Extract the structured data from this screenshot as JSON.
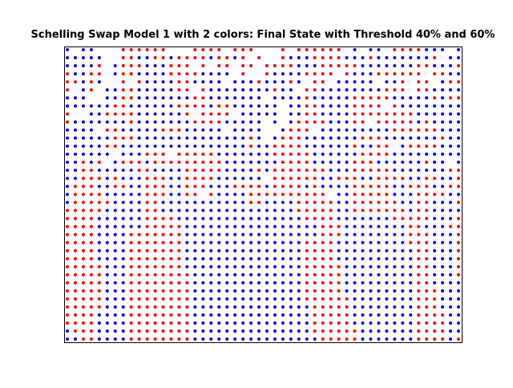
{
  "chart_data": {
    "type": "scatter",
    "title": "Schelling Swap Model 1 with 2 colors: Final State with Threshold 40% and 60%",
    "xlabel": "",
    "ylabel": "",
    "grid": false,
    "axes_ticks": false,
    "grid_size": [
      50,
      37
    ],
    "series": [
      {
        "color": "#ff0000"
      },
      {
        "color": "#0000ff"
      }
    ],
    "cells": [
      "b-bb---rrrrrr---rrrr-rrr---r-rrrrrr-b-bb-rrrrbbb-b",
      "bbbbb--rrbbrrbrrrrbrrbr-r--rbbbrrrrbbbrbbbbbbbr-bb",
      "bbbbr-brrrbbbrrr-r-rr-rr-rrrrbbbrrrrrbbbbbbbrrbbbr",
      "rbbrr-brrbbbbrrrrbbbb-r--rbbbbrrrr-rbbbrrrrrr-rrbb",
      "rrbrb--r-rbbbbrrbbbb-bbbrbbbrb-rr-bbbbb-bbr-rr-brr",
      "r-br-bbrrbbbbbrr-rbbbbbbbbrbb-rrbbbbbbbbrrr-rrbbbb",
      "bbb--bbrrbbbbbbbrrbbbbbbb-bbbbrbbbbbrrrrrbbbbbrbrr",
      "bbbbbbrrbbbbbbrrrrbrrbbbbbb-bbrrbbbbrrrr-rbbbbbbbb",
      "r--bbrrrrbbbbbbr-rrrr-bbbbb-bbrrbbbbrrrrrrrrbbbbbb",
      "rbbbbbbbrbbbbbbbrrrrbbbbb-b-brrrrbbbrr-rrrrrbrbbbb",
      "bbbb-rrbbbbbrrrbbbbb-bbbb--brrr-bbbbbbbbbrrrrrrbbb",
      "bbbbbbrrrbbbbbbbbbbbbbbrb-brrrbbbbbbbrrrbbbbbbbrbb",
      "bbbbbrrbbbbbbbbbbbbbbbbrbbrrrrbbbbbbrbbrr-brrrrbbb",
      "bbbbbb-bbbrrr-rrrrrbbbbbbbrrrrrbbbbbbrrrrbbbbbbbbb",
      "bbrbr-brrrbrrrrrrrrrbbbbbbbrrrrbbbbbrrrbbbbbbrbb-b",
      "bbrrbbbbbrrbbbbrrrrrbbbbrbrrrrrrrbbbrrrrrbbbbbbbrr",
      "bbrrrbrbbbrrrbbrrrrbbbbbb-rrrrrrbbrrrbbrrrrbbrrbbr",
      "brrrbbrrbbrrrbbrrrbbbrrrrbrrrrbrbbbbrrrrrbbrrrbbrr",
      "brrrrbbbbbrrrbbrr-rbbbbrrrrrrrrrr-bbrrrrrbbbrrrrbb",
      "brrrrrbbbbrrbbbbbbbbbbbrrbbbbrrrrrbbrrrrrrbbrrbbbr",
      "rrrrrbbbbbrrbbbbbbbbbbbbbbbbbrrrrrbbrrrrrrrbrrbbbb",
      "rrrrbbbbbbrrrrbbbbbbbbbbbbbbbbrrrrbbbbbbbrrrrrbbbr",
      "rrrrbbbbbbrrrrrbbbbbbbbbbbbbbbbbrrrbbbbbbbbrrbbbrr",
      "rrrrbbbbrrrrrrrbbbbbbbbbbbbbbbbbrrrbbbbbbbbrrrbbbr",
      "rrrrbbbbrrrrrrrbbbbbbbbbbbbbbbrrrrbbbbbbbbbrrrbbbr",
      "rrrrbbbbrrrrrrrbbbbbbbbbbbbbbbrrrrbbbbbbbbbbrrbbbr",
      "rrrrbbbbrrrrrrrbbbbbbbbbbbbbbbrrrrbbbbbbbbbbrrbbbr",
      "rrrrrbbbrrrrrrrbbbbbbbbbbbbbbbrrrrrbbbbbbbbbrrbbbr",
      "rrrrrbbbrrrrrrrrbbbbbbbbbbbbbbrrrrrbbbbbbbbbrrbbbr",
      "rrrrrbbbrrrrrrrrbbbbbbbbbbbbbbrrrrrbbbbbbbbbrrbbbb",
      "rrrrrbbbrrrrrrrrbbbbbbbbbbbbbbrrrrrbbbbbbbbbrrrbbb",
      "rrrrrbbbrrrrrrrrbbbbbbbbbbbbbbrrrrrrbbbbbbbbrrrbbb",
      "rrrrrbbbrrrrrrrrbbbbbbbbbbbbbbbrrrrrbbbbbbbbrrrbbb",
      "rrrrbbbbrrrrrrrrbbbbbbbbbbbbbbbrrrrrbbbbbbbbrrrrbb",
      "rrrrbbbbrrrrrrrrbbbbbbbbbbbbbbbrrrrrbbbbbbbbrrrrbb",
      "brrrbbbbrrrrrrrrbbbbbbbbbbbbbbbrrrrrrbbbbbbbrrrrbb",
      "bbrrbbbbrrrrrrrrbbbbbbbbbbbbbbbbrrrrrbbbbbbbrrrrbr"
    ]
  }
}
